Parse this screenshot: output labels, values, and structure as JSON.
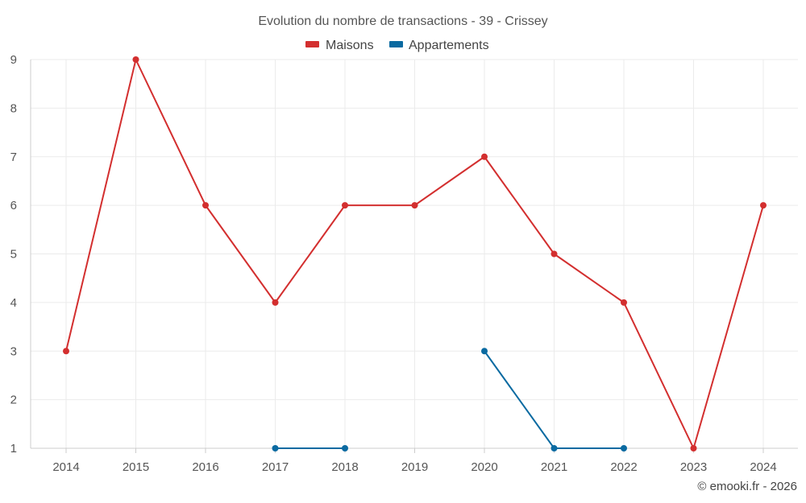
{
  "chart_data": {
    "type": "line",
    "title": "Evolution du nombre de transactions - 39 - Crissey",
    "xlabel": "",
    "ylabel": "",
    "categories": [
      "2014",
      "2015",
      "2016",
      "2017",
      "2018",
      "2019",
      "2020",
      "2021",
      "2022",
      "2023",
      "2024"
    ],
    "y_ticks": [
      "1",
      "2",
      "3",
      "4",
      "5",
      "6",
      "7",
      "8",
      "9"
    ],
    "ylim": [
      1,
      9
    ],
    "grid": true,
    "legend_position": "top-center",
    "series": [
      {
        "name": "Maisons",
        "color": "#d32f2f",
        "values": [
          3,
          9,
          6,
          4,
          6,
          6,
          7,
          5,
          4,
          1,
          6
        ]
      },
      {
        "name": "Appartements",
        "color": "#0a6aa1",
        "values": [
          null,
          null,
          null,
          1,
          1,
          null,
          3,
          1,
          1,
          null,
          null
        ]
      }
    ]
  },
  "credit": "© emooki.fr - 2026"
}
